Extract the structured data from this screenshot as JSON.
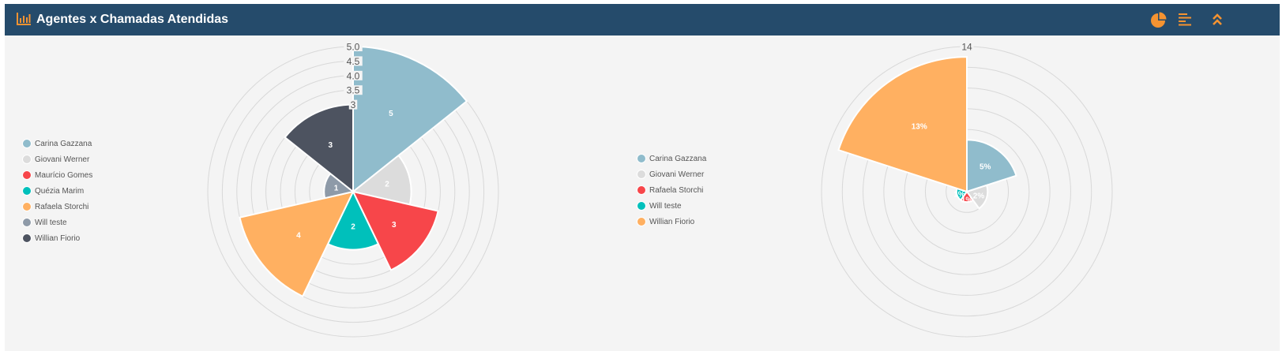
{
  "header": {
    "title": "Agentes x Chamadas Atendidas",
    "bar_color": "#254b6b",
    "accent": "#f59331",
    "icons": [
      "bar-chart-icon",
      "pie-chart-icon",
      "bar-list-icon",
      "collapse-up-icon"
    ]
  },
  "chart_data": [
    {
      "type": "polar-area",
      "title": "",
      "rmax": 5,
      "radial_ticks": [
        "5.0",
        "4.5",
        "4.0",
        "3.5",
        "3"
      ],
      "legend_position": "left",
      "categories": [
        "Carina Gazzana",
        "Giovani Werner",
        "Maurício Gomes",
        "Quézia Marim",
        "Rafaela Storchi",
        "Will teste",
        "Willian Fiorio"
      ],
      "values": [
        5,
        2,
        3,
        2,
        4,
        1,
        3
      ],
      "labels": [
        "5",
        "2",
        "3",
        "2",
        "4",
        "1",
        "3"
      ],
      "colors": [
        "#90bccc",
        "#dcdcdc",
        "#f7464a",
        "#00c0bb",
        "#ffb061",
        "#8e9aa8",
        "#4d5360"
      ]
    },
    {
      "type": "polar-area",
      "title": "",
      "rmax": 14,
      "radial_ticks": [
        "14"
      ],
      "legend_position": "left",
      "categories": [
        "Carina Gazzana",
        "Giovani Werner",
        "Rafaela Storchi",
        "Will teste",
        "Willian Fiorio"
      ],
      "values": [
        5,
        2,
        1,
        1,
        13
      ],
      "labels": [
        "5%",
        "2%",
        "1%",
        "1%",
        "13%"
      ],
      "colors": [
        "#90bccc",
        "#dcdcdc",
        "#f7464a",
        "#00c0bb",
        "#ffb061"
      ]
    }
  ]
}
